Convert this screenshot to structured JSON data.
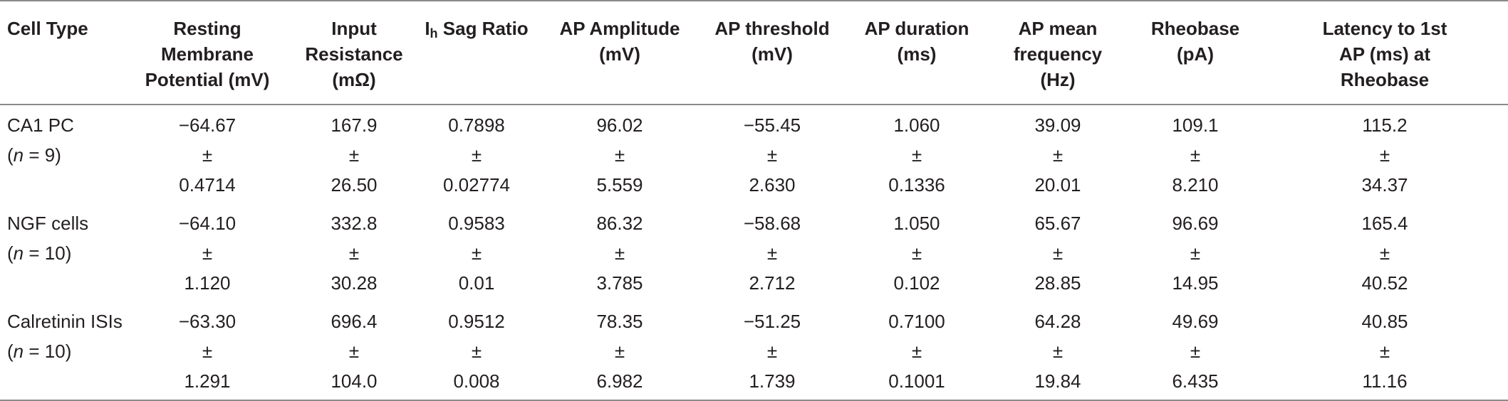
{
  "table": {
    "headers": [
      {
        "lines": [
          "Cell Type"
        ]
      },
      {
        "lines": [
          "Resting",
          "Membrane",
          "Potential (mV)"
        ]
      },
      {
        "lines": [
          "Input",
          "Resistance",
          "(mΩ)"
        ]
      },
      {
        "prefix": "I",
        "sub": "h",
        "suffix": " Sag Ratio"
      },
      {
        "lines": [
          "AP Amplitude",
          "(mV)"
        ]
      },
      {
        "lines": [
          "AP threshold",
          "(mV)"
        ]
      },
      {
        "lines": [
          "AP duration",
          "(ms)"
        ]
      },
      {
        "lines": [
          "AP mean",
          "frequency",
          "(Hz)"
        ]
      },
      {
        "lines": [
          "Rheobase",
          "(pA)"
        ]
      },
      {
        "lines": [
          "Latency to 1st",
          "AP (ms) at",
          "Rheobase"
        ]
      }
    ],
    "pm_symbol": "±",
    "rows": [
      {
        "name": "CA1 PC",
        "n_italic": "n",
        "n_rest": " = 9)",
        "n_open": "(",
        "cells": [
          {
            "mean": "−64.67",
            "sem": "0.4714"
          },
          {
            "mean": "167.9",
            "sem": "26.50"
          },
          {
            "mean": "0.7898",
            "sem": "0.02774"
          },
          {
            "mean": "96.02",
            "sem": "5.559"
          },
          {
            "mean": "−55.45",
            "sem": "2.630"
          },
          {
            "mean": "1.060",
            "sem": "0.1336"
          },
          {
            "mean": "39.09",
            "sem": "20.01"
          },
          {
            "mean": "109.1",
            "sem": "8.210"
          },
          {
            "mean": "115.2",
            "sem": "34.37"
          }
        ]
      },
      {
        "name": "NGF cells",
        "n_italic": "n",
        "n_rest": " = 10)",
        "n_open": "(",
        "cells": [
          {
            "mean": "−64.10",
            "sem": "1.120"
          },
          {
            "mean": "332.8",
            "sem": "30.28"
          },
          {
            "mean": "0.9583",
            "sem": "0.01"
          },
          {
            "mean": "86.32",
            "sem": "3.785"
          },
          {
            "mean": "−58.68",
            "sem": "2.712"
          },
          {
            "mean": "1.050",
            "sem": "0.102"
          },
          {
            "mean": "65.67",
            "sem": "28.85"
          },
          {
            "mean": "96.69",
            "sem": "14.95"
          },
          {
            "mean": "165.4",
            "sem": "40.52"
          }
        ]
      },
      {
        "name": "Calretinin ISIs",
        "n_italic": "n",
        "n_rest": " = 10)",
        "n_open": "(",
        "cells": [
          {
            "mean": "−63.30",
            "sem": "1.291"
          },
          {
            "mean": "696.4",
            "sem": "104.0"
          },
          {
            "mean": "0.9512",
            "sem": "0.008"
          },
          {
            "mean": "78.35",
            "sem": "6.982"
          },
          {
            "mean": "−51.25",
            "sem": "1.739"
          },
          {
            "mean": "0.7100",
            "sem": "0.1001"
          },
          {
            "mean": "64.28",
            "sem": "19.84"
          },
          {
            "mean": "49.69",
            "sem": "6.435"
          },
          {
            "mean": "40.85",
            "sem": "11.16"
          }
        ]
      }
    ]
  }
}
